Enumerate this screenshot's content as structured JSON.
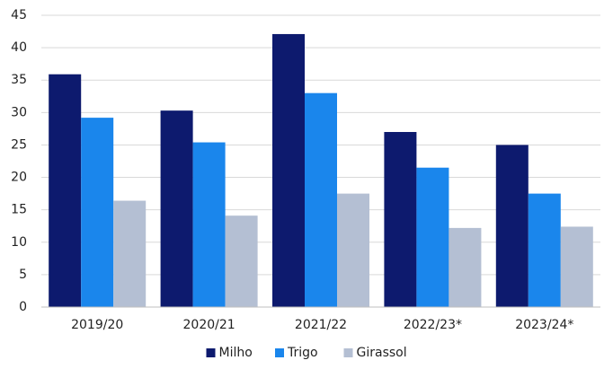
{
  "chart_data": {
    "type": "bar",
    "categories": [
      "2019/20",
      "2020/21",
      "2021/22",
      "2022/23*",
      "2023/24*"
    ],
    "series": [
      {
        "name": "Milho",
        "color": "#0d1a6e",
        "values": [
          35.9,
          30.3,
          42.1,
          27.0,
          25.0
        ]
      },
      {
        "name": "Trigo",
        "color": "#1a86ec",
        "values": [
          29.2,
          25.4,
          33.0,
          21.5,
          17.5
        ]
      },
      {
        "name": "Girassol",
        "color": "#b4bfd3",
        "values": [
          16.4,
          14.1,
          17.5,
          12.2,
          12.4
        ]
      }
    ],
    "ylim": [
      0,
      45
    ],
    "yticks": [
      0,
      5,
      10,
      15,
      20,
      25,
      30,
      35,
      40,
      45
    ],
    "grid": true,
    "legend": "bottom"
  }
}
